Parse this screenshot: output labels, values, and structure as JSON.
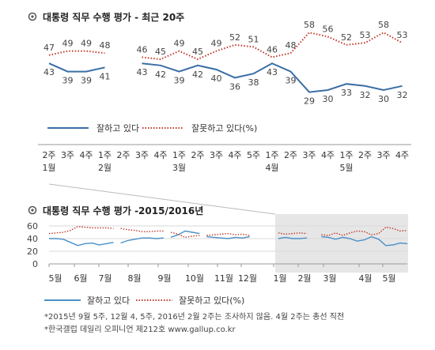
{
  "chart_data": [
    {
      "type": "line",
      "title": "대통령 직무 수행 평가 - 최근 20주",
      "x_labels": [
        "2주",
        "3주",
        "4주",
        "1주",
        "2주",
        "3주",
        "4주",
        "1주",
        "2주",
        "3주",
        "4주",
        "5주",
        "1주",
        "2주",
        "3주",
        "4주",
        "1주",
        "2주",
        "3주",
        "4주"
      ],
      "month_labels": [
        "1월",
        "2월",
        "3월",
        "4월",
        "5월"
      ],
      "series": [
        {
          "name": "잘하고 있다",
          "color": "#3a6ea5",
          "style": "solid",
          "segments": [
            {
              "x": [
                0,
                1,
                2,
                3
              ],
              "values": [
                43,
                39,
                39,
                41
              ]
            },
            {
              "x": [
                5,
                6,
                7,
                8,
                9,
                10,
                11,
                12,
                13,
                14,
                15,
                16,
                17,
                18,
                19
              ],
              "values": [
                43,
                42,
                39,
                42,
                40,
                36,
                38,
                43,
                39,
                29,
                30,
                33,
                32,
                30,
                32
              ]
            }
          ]
        },
        {
          "name": "잘못하고 있다(%)",
          "color": "#c0392b",
          "style": "dotted",
          "segments": [
            {
              "x": [
                0,
                1,
                2,
                3
              ],
              "values": [
                47,
                49,
                49,
                48
              ]
            },
            {
              "x": [
                5,
                6,
                7,
                8,
                9,
                10,
                11,
                12,
                13,
                14,
                15,
                16,
                17,
                18,
                19
              ],
              "values": [
                46,
                45,
                49,
                45,
                49,
                52,
                51,
                46,
                48,
                58,
                56,
                52,
                53,
                58,
                53
              ]
            }
          ]
        }
      ],
      "legend": [
        "잘하고 있다",
        "잘못하고 있다(%)"
      ]
    },
    {
      "type": "line",
      "title": "대통령 직무 수행 평가 -2015/2016년",
      "ylim": [
        0,
        60
      ],
      "yticks": [
        "0",
        "20",
        "40",
        "60"
      ],
      "x_labels": [
        "5월",
        "6월",
        "7월",
        "8월",
        "9월",
        "10월",
        "11월",
        "12월",
        "1월",
        "2월",
        "3월",
        "4월",
        "5월"
      ],
      "series": [
        {
          "name": "잘하고 있다",
          "color": "#4a90c8",
          "style": "solid",
          "segments": [
            {
              "x": [
                0,
                0.5,
                1,
                1.5,
                2,
                2.5,
                3,
                3.5,
                4,
                4.5
              ],
              "values": [
                40,
                40,
                39,
                34,
                29,
                32,
                33,
                30,
                32,
                34
              ]
            },
            {
              "x": [
                5,
                5.5,
                6,
                6.5,
                7,
                7.5,
                8
              ],
              "values": [
                33,
                37,
                39,
                41,
                41,
                40,
                41
              ]
            },
            {
              "x": [
                8.5,
                9,
                9.5,
                10,
                10.5
              ],
              "values": [
                42,
                46,
                52,
                50,
                48
              ]
            },
            {
              "x": [
                11,
                11.5,
                12,
                12.5,
                13,
                13.5,
                14
              ],
              "values": [
                43,
                42,
                41,
                40,
                42,
                41,
                43
              ]
            },
            {
              "x": [
                16,
                16.5,
                17,
                17.5,
                18
              ],
              "values": [
                40,
                42,
                40,
                40,
                41
              ]
            },
            {
              "x": [
                19,
                19.5,
                20,
                20.5,
                21,
                21.5,
                22,
                22.5,
                23,
                23.5,
                24,
                24.5,
                25
              ],
              "values": [
                43,
                42,
                39,
                42,
                40,
                36,
                38,
                43,
                39,
                29,
                30,
                33,
                32
              ]
            }
          ]
        },
        {
          "name": "잘못하고 있다(%)",
          "color": "#c0392b",
          "style": "dotted",
          "segments": [
            {
              "x": [
                0,
                0.5,
                1,
                1.5,
                2,
                2.5,
                3,
                3.5,
                4,
                4.5
              ],
              "values": [
                48,
                49,
                50,
                53,
                59,
                58,
                57,
                57,
                57,
                56
              ]
            },
            {
              "x": [
                5,
                5.5,
                6,
                6.5,
                7,
                7.5,
                8
              ],
              "values": [
                56,
                54,
                53,
                51,
                51,
                52,
                52
              ]
            },
            {
              "x": [
                8.5,
                9,
                9.5,
                10,
                10.5
              ],
              "values": [
                50,
                47,
                42,
                44,
                45
              ]
            },
            {
              "x": [
                11,
                11.5,
                12,
                12.5,
                13,
                13.5,
                14
              ],
              "values": [
                45,
                46,
                47,
                48,
                46,
                47,
                45
              ]
            },
            {
              "x": [
                16,
                16.5,
                17,
                17.5,
                18
              ],
              "values": [
                49,
                47,
                48,
                49,
                48
              ]
            },
            {
              "x": [
                19,
                19.5,
                20,
                20.5,
                21,
                21.5,
                22,
                22.5,
                23,
                23.5,
                24,
                24.5,
                25
              ],
              "values": [
                46,
                45,
                49,
                45,
                49,
                52,
                51,
                46,
                48,
                58,
                56,
                52,
                53
              ]
            }
          ]
        }
      ],
      "legend": [
        "잘하고 있다",
        "잘못하고 있다(%)"
      ]
    }
  ],
  "footnotes": [
    "*2015년 9월 5주, 12월 4, 5주, 2016년 2월 2주는 조사하지 않음. 4월 2주는 총선 직전",
    "*한국갤럽 데일리 오피니언 제212호 www.gallup.co.kr"
  ],
  "colors": {
    "good": "#3a6ea5",
    "bad": "#c0392b",
    "highlight": "#e6e6e6"
  },
  "icons": {
    "title_bullet": "target-icon"
  }
}
